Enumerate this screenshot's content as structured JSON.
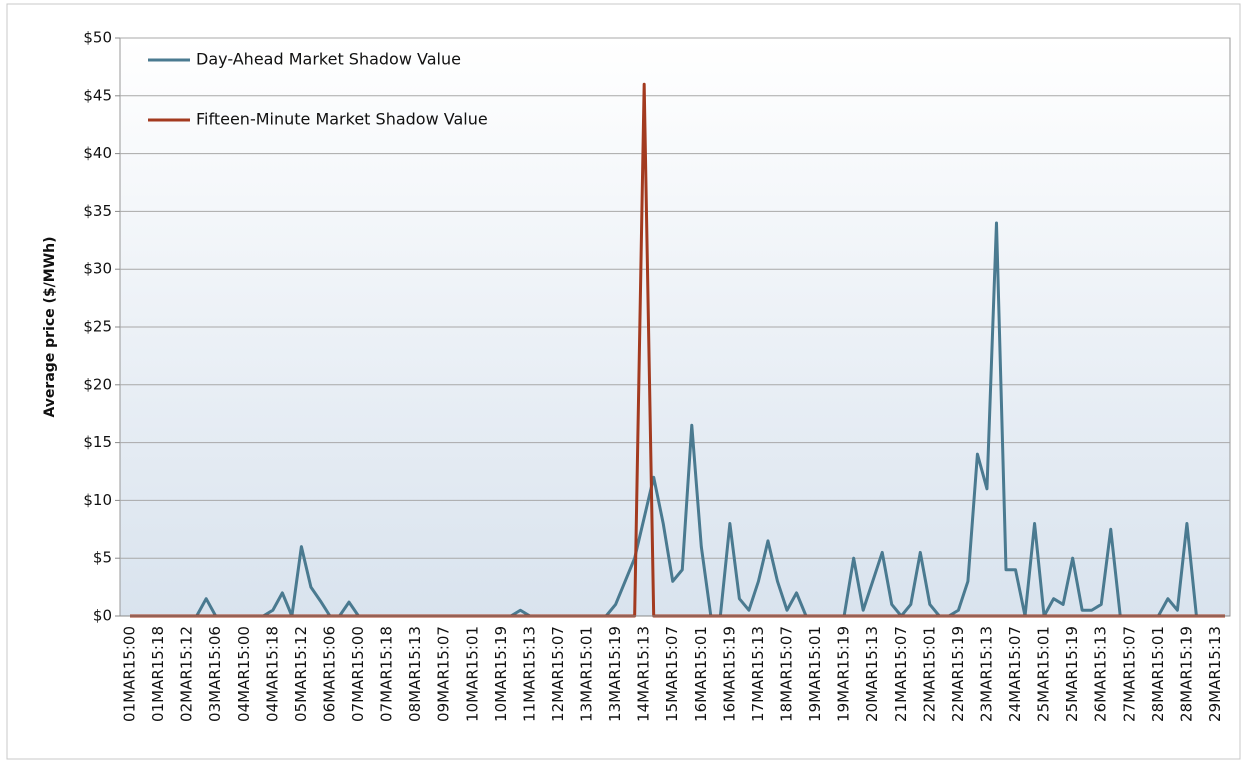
{
  "chart_data": {
    "type": "line",
    "ylabel": "Average price ($/MWh)",
    "ylim": [
      0,
      50
    ],
    "yticks": [
      {
        "value": 0,
        "label": "$0"
      },
      {
        "value": 5,
        "label": "$5"
      },
      {
        "value": 10,
        "label": "$10"
      },
      {
        "value": 15,
        "label": "$15"
      },
      {
        "value": 20,
        "label": "$20"
      },
      {
        "value": 25,
        "label": "$25"
      },
      {
        "value": 30,
        "label": "$30"
      },
      {
        "value": 35,
        "label": "$35"
      },
      {
        "value": 40,
        "label": "$40"
      },
      {
        "value": 45,
        "label": "$45"
      },
      {
        "value": 50,
        "label": "$50"
      }
    ],
    "grid": true,
    "legend": "upper left",
    "categories": [
      "01MAR15:00",
      null,
      null,
      "01MAR15:18",
      null,
      null,
      "02MAR15:12",
      null,
      null,
      "03MAR15:06",
      null,
      null,
      "04MAR15:00",
      null,
      null,
      "04MAR15:18",
      null,
      null,
      "05MAR15:12",
      null,
      null,
      "06MAR15:06",
      null,
      null,
      "07MAR15:00",
      null,
      null,
      "07MAR15:18",
      null,
      null,
      "08MAR15:13",
      null,
      null,
      "09MAR15:07",
      null,
      null,
      "10MAR15:01",
      null,
      null,
      "10MAR15:19",
      null,
      null,
      "11MAR15:13",
      null,
      null,
      "12MAR15:07",
      null,
      null,
      "13MAR15:01",
      null,
      null,
      "13MAR15:19",
      null,
      null,
      "14MAR15:13",
      null,
      null,
      "15MAR15:07",
      null,
      null,
      "16MAR15:01",
      null,
      null,
      "16MAR15:19",
      null,
      null,
      "17MAR15:13",
      null,
      null,
      "18MAR15:07",
      null,
      null,
      "19MAR15:01",
      null,
      null,
      "19MAR15:19",
      null,
      null,
      "20MAR15:13",
      null,
      null,
      "21MAR15:07",
      null,
      null,
      "22MAR15:01",
      null,
      null,
      "22MAR15:19",
      null,
      null,
      "23MAR15:13",
      null,
      null,
      "24MAR15:07",
      null,
      null,
      "25MAR15:01",
      null,
      null,
      "25MAR15:19",
      null,
      null,
      "26MAR15:13",
      null,
      null,
      "27MAR15:07",
      null,
      null,
      "28MAR15:01",
      null,
      null,
      "28MAR15:19",
      null,
      null,
      "29MAR15:13",
      null
    ],
    "series": [
      {
        "name": "Day-Ahead Market Shadow Value",
        "color": "#4a7a90",
        "values": [
          0,
          0,
          0,
          0,
          0,
          0,
          0,
          0,
          1.5,
          0,
          0,
          0,
          0,
          0,
          0,
          0.5,
          2,
          0,
          6,
          2.5,
          1.3,
          0,
          0,
          1.2,
          0,
          0,
          0,
          0,
          0,
          0,
          0,
          0,
          0,
          0,
          0,
          0,
          0,
          0,
          0,
          0,
          0,
          0.5,
          0,
          0,
          0,
          0,
          0,
          0,
          0,
          0,
          0,
          1,
          3,
          5,
          8.5,
          12,
          8,
          3,
          4,
          16.5,
          6,
          0,
          0,
          8,
          1.5,
          0.5,
          3,
          6.5,
          3,
          0.5,
          2,
          0,
          0,
          0,
          0,
          0,
          5,
          0.5,
          3,
          5.5,
          1,
          0,
          1,
          5.5,
          1,
          0,
          0,
          0.5,
          3,
          14,
          11,
          34,
          4,
          4,
          0,
          8,
          0,
          1.5,
          1,
          5,
          0.5,
          0.5,
          1,
          7.5,
          0,
          0,
          0,
          0,
          0,
          1.5,
          0.5,
          8,
          0,
          0,
          0,
          0
        ]
      },
      {
        "name": "Fifteen-Minute Market Shadow Value",
        "color": "#a33a1f",
        "values": [
          0,
          0,
          0,
          0,
          0,
          0,
          0,
          0,
          0,
          0,
          0,
          0,
          0,
          0,
          0,
          0,
          0,
          0,
          0,
          0,
          0,
          0,
          0,
          0,
          0,
          0,
          0,
          0,
          0,
          0,
          0,
          0,
          0,
          0,
          0,
          0,
          0,
          0,
          0,
          0,
          0,
          0,
          0,
          0,
          0,
          0,
          0,
          0,
          0,
          0,
          0,
          0,
          0,
          0,
          46,
          0,
          0,
          0,
          0,
          0,
          0,
          0,
          0,
          0,
          0,
          0,
          0,
          0,
          0,
          0,
          0,
          0,
          0,
          0,
          0,
          0,
          0,
          0,
          0,
          0,
          0,
          0,
          0,
          0,
          0,
          0,
          0,
          0,
          0,
          0,
          0,
          0,
          0,
          0,
          0,
          0,
          0,
          0,
          0,
          0,
          0,
          0,
          0,
          0,
          0,
          0,
          0,
          0,
          0,
          0,
          0,
          0,
          0,
          0,
          0,
          0
        ]
      }
    ]
  }
}
